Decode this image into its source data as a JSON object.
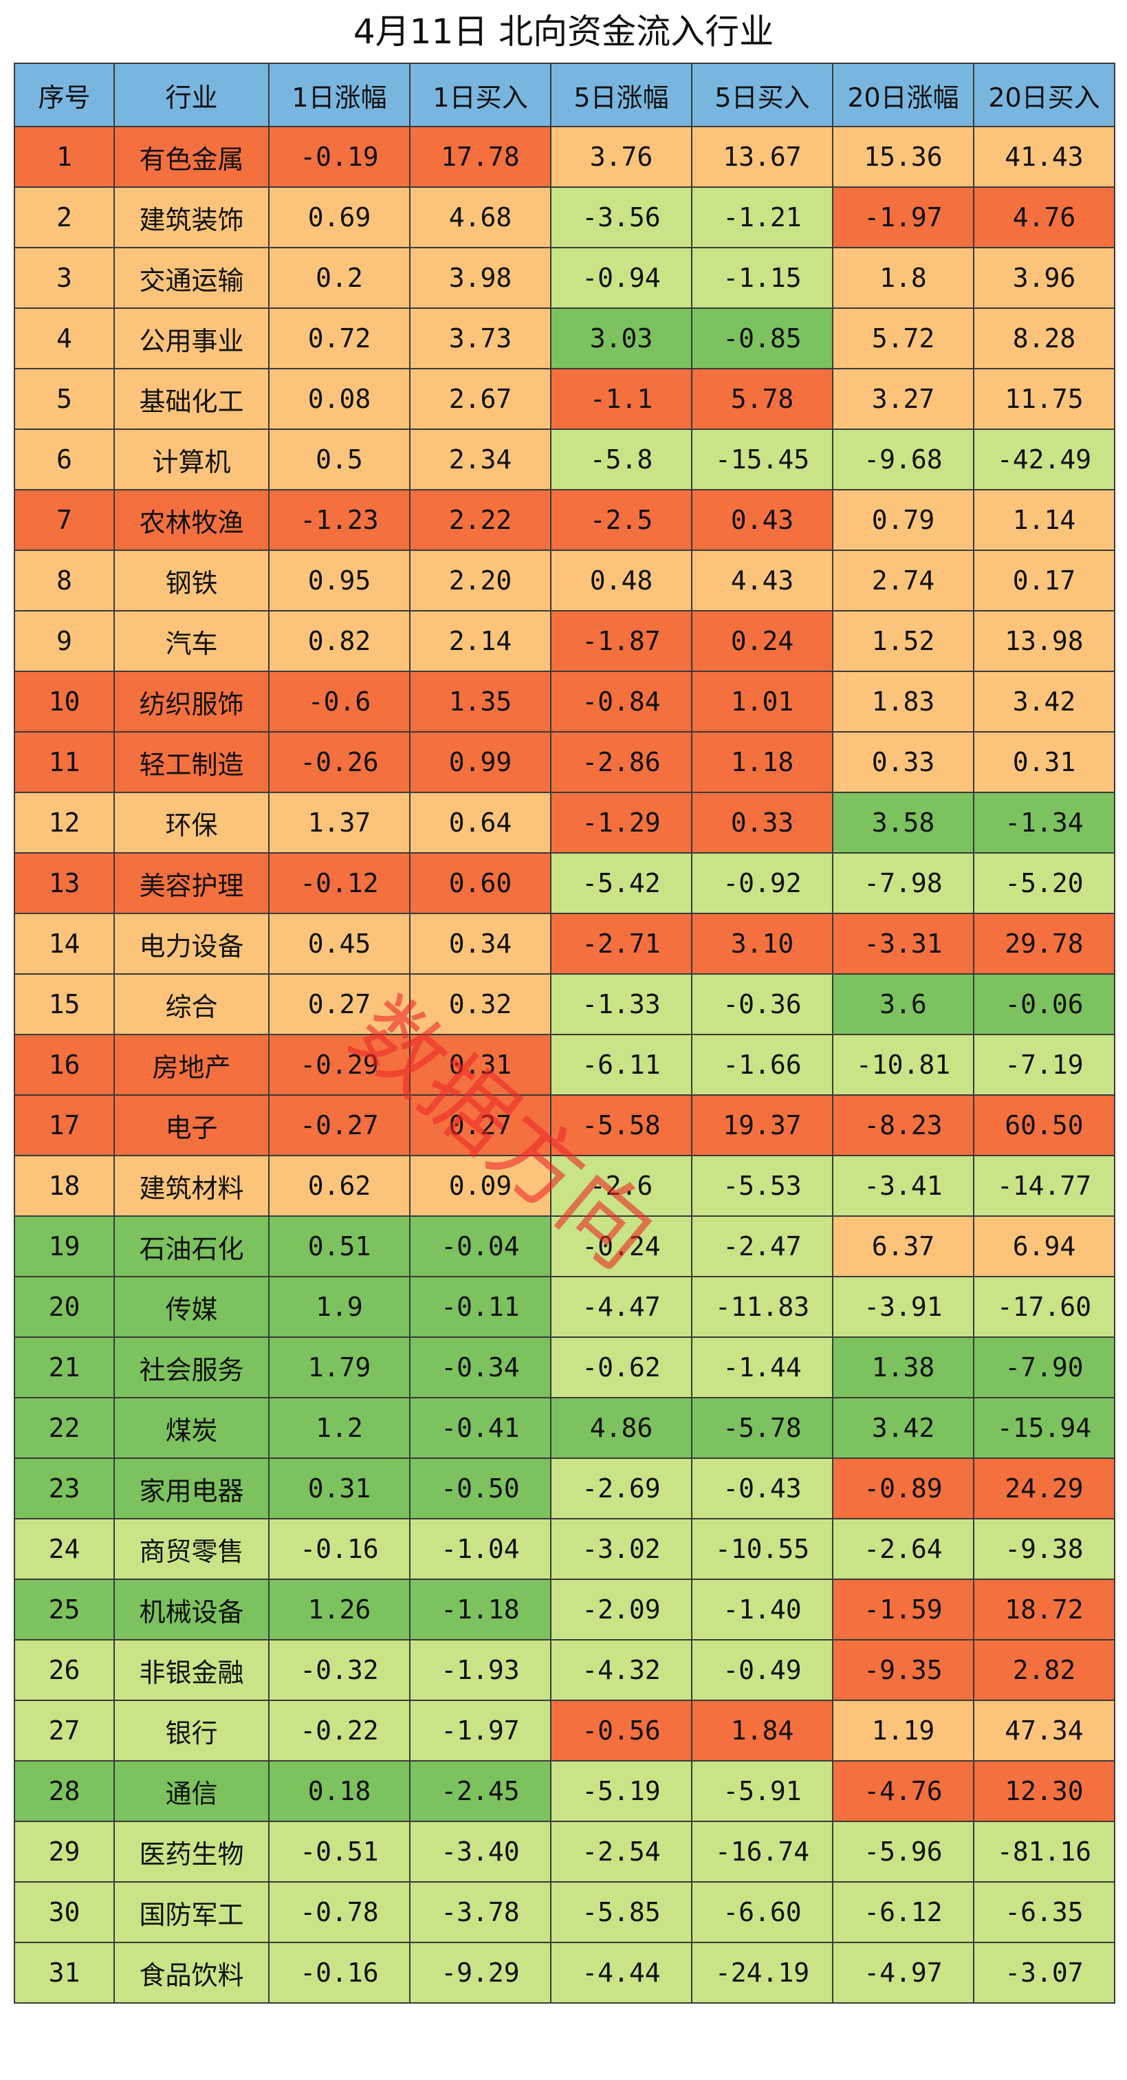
{
  "title": "4月11日  北向资金流入行业",
  "watermark": "数据方向",
  "colors": {
    "O": "#f4703f",
    "Y": "#fcc47a",
    "G": "#7cc25e",
    "L": "#c8e486",
    "header": "#79b6df"
  },
  "chart_data": {
    "type": "table",
    "title": "4月11日  北向资金流入行业",
    "columns": [
      "序号",
      "行业",
      "1日涨幅",
      "1日买入",
      "5日涨幅",
      "5日买入",
      "20日涨幅",
      "20日买入"
    ],
    "rows": [
      {
        "cells": [
          "1",
          "有色金属",
          "-0.19",
          "17.78",
          "3.76",
          "13.67",
          "15.36",
          "41.43"
        ],
        "colors": [
          "O",
          "O",
          "O",
          "O",
          "Y",
          "Y",
          "Y",
          "Y"
        ]
      },
      {
        "cells": [
          "2",
          "建筑装饰",
          "0.69",
          "4.68",
          "-3.56",
          "-1.21",
          "-1.97",
          "4.76"
        ],
        "colors": [
          "Y",
          "Y",
          "Y",
          "Y",
          "L",
          "L",
          "O",
          "O"
        ]
      },
      {
        "cells": [
          "3",
          "交通运输",
          "0.2",
          "3.98",
          "-0.94",
          "-1.15",
          "1.8",
          "3.96"
        ],
        "colors": [
          "Y",
          "Y",
          "Y",
          "Y",
          "L",
          "L",
          "Y",
          "Y"
        ]
      },
      {
        "cells": [
          "4",
          "公用事业",
          "0.72",
          "3.73",
          "3.03",
          "-0.85",
          "5.72",
          "8.28"
        ],
        "colors": [
          "Y",
          "Y",
          "Y",
          "Y",
          "G",
          "G",
          "Y",
          "Y"
        ]
      },
      {
        "cells": [
          "5",
          "基础化工",
          "0.08",
          "2.67",
          "-1.1",
          "5.78",
          "3.27",
          "11.75"
        ],
        "colors": [
          "Y",
          "Y",
          "Y",
          "Y",
          "O",
          "O",
          "Y",
          "Y"
        ]
      },
      {
        "cells": [
          "6",
          "计算机",
          "0.5",
          "2.34",
          "-5.8",
          "-15.45",
          "-9.68",
          "-42.49"
        ],
        "colors": [
          "Y",
          "Y",
          "Y",
          "Y",
          "L",
          "L",
          "L",
          "L"
        ]
      },
      {
        "cells": [
          "7",
          "农林牧渔",
          "-1.23",
          "2.22",
          "-2.5",
          "0.43",
          "0.79",
          "1.14"
        ],
        "colors": [
          "O",
          "O",
          "O",
          "O",
          "O",
          "O",
          "Y",
          "Y"
        ]
      },
      {
        "cells": [
          "8",
          "钢铁",
          "0.95",
          "2.20",
          "0.48",
          "4.43",
          "2.74",
          "0.17"
        ],
        "colors": [
          "Y",
          "Y",
          "Y",
          "Y",
          "Y",
          "Y",
          "Y",
          "Y"
        ]
      },
      {
        "cells": [
          "9",
          "汽车",
          "0.82",
          "2.14",
          "-1.87",
          "0.24",
          "1.52",
          "13.98"
        ],
        "colors": [
          "Y",
          "Y",
          "Y",
          "Y",
          "O",
          "O",
          "Y",
          "Y"
        ]
      },
      {
        "cells": [
          "10",
          "纺织服饰",
          "-0.6",
          "1.35",
          "-0.84",
          "1.01",
          "1.83",
          "3.42"
        ],
        "colors": [
          "O",
          "O",
          "O",
          "O",
          "O",
          "O",
          "Y",
          "Y"
        ]
      },
      {
        "cells": [
          "11",
          "轻工制造",
          "-0.26",
          "0.99",
          "-2.86",
          "1.18",
          "0.33",
          "0.31"
        ],
        "colors": [
          "O",
          "O",
          "O",
          "O",
          "O",
          "O",
          "Y",
          "Y"
        ]
      },
      {
        "cells": [
          "12",
          "环保",
          "1.37",
          "0.64",
          "-1.29",
          "0.33",
          "3.58",
          "-1.34"
        ],
        "colors": [
          "Y",
          "Y",
          "Y",
          "Y",
          "O",
          "O",
          "G",
          "G"
        ]
      },
      {
        "cells": [
          "13",
          "美容护理",
          "-0.12",
          "0.60",
          "-5.42",
          "-0.92",
          "-7.98",
          "-5.20"
        ],
        "colors": [
          "O",
          "O",
          "O",
          "O",
          "L",
          "L",
          "L",
          "L"
        ]
      },
      {
        "cells": [
          "14",
          "电力设备",
          "0.45",
          "0.34",
          "-2.71",
          "3.10",
          "-3.31",
          "29.78"
        ],
        "colors": [
          "Y",
          "Y",
          "Y",
          "Y",
          "O",
          "O",
          "O",
          "O"
        ]
      },
      {
        "cells": [
          "15",
          "综合",
          "0.27",
          "0.32",
          "-1.33",
          "-0.36",
          "3.6",
          "-0.06"
        ],
        "colors": [
          "Y",
          "Y",
          "Y",
          "Y",
          "L",
          "L",
          "G",
          "G"
        ]
      },
      {
        "cells": [
          "16",
          "房地产",
          "-0.29",
          "0.31",
          "-6.11",
          "-1.66",
          "-10.81",
          "-7.19"
        ],
        "colors": [
          "O",
          "O",
          "O",
          "O",
          "L",
          "L",
          "L",
          "L"
        ]
      },
      {
        "cells": [
          "17",
          "电子",
          "-0.27",
          "0.27",
          "-5.58",
          "19.37",
          "-8.23",
          "60.50"
        ],
        "colors": [
          "O",
          "O",
          "O",
          "O",
          "O",
          "O",
          "O",
          "O"
        ]
      },
      {
        "cells": [
          "18",
          "建筑材料",
          "0.62",
          "0.09",
          "-2.6",
          "-5.53",
          "-3.41",
          "-14.77"
        ],
        "colors": [
          "Y",
          "Y",
          "Y",
          "Y",
          "L",
          "L",
          "L",
          "L"
        ]
      },
      {
        "cells": [
          "19",
          "石油石化",
          "0.51",
          "-0.04",
          "-0.24",
          "-2.47",
          "6.37",
          "6.94"
        ],
        "colors": [
          "G",
          "G",
          "G",
          "G",
          "L",
          "L",
          "Y",
          "Y"
        ]
      },
      {
        "cells": [
          "20",
          "传媒",
          "1.9",
          "-0.11",
          "-4.47",
          "-11.83",
          "-3.91",
          "-17.60"
        ],
        "colors": [
          "G",
          "G",
          "G",
          "G",
          "L",
          "L",
          "L",
          "L"
        ]
      },
      {
        "cells": [
          "21",
          "社会服务",
          "1.79",
          "-0.34",
          "-0.62",
          "-1.44",
          "1.38",
          "-7.90"
        ],
        "colors": [
          "G",
          "G",
          "G",
          "G",
          "L",
          "L",
          "G",
          "G"
        ]
      },
      {
        "cells": [
          "22",
          "煤炭",
          "1.2",
          "-0.41",
          "4.86",
          "-5.78",
          "3.42",
          "-15.94"
        ],
        "colors": [
          "G",
          "G",
          "G",
          "G",
          "G",
          "G",
          "G",
          "G"
        ]
      },
      {
        "cells": [
          "23",
          "家用电器",
          "0.31",
          "-0.50",
          "-2.69",
          "-0.43",
          "-0.89",
          "24.29"
        ],
        "colors": [
          "G",
          "G",
          "G",
          "G",
          "L",
          "L",
          "O",
          "O"
        ]
      },
      {
        "cells": [
          "24",
          "商贸零售",
          "-0.16",
          "-1.04",
          "-3.02",
          "-10.55",
          "-2.64",
          "-9.38"
        ],
        "colors": [
          "L",
          "L",
          "L",
          "L",
          "L",
          "L",
          "L",
          "L"
        ]
      },
      {
        "cells": [
          "25",
          "机械设备",
          "1.26",
          "-1.18",
          "-2.09",
          "-1.40",
          "-1.59",
          "18.72"
        ],
        "colors": [
          "G",
          "G",
          "G",
          "G",
          "L",
          "L",
          "O",
          "O"
        ]
      },
      {
        "cells": [
          "26",
          "非银金融",
          "-0.32",
          "-1.93",
          "-4.32",
          "-0.49",
          "-9.35",
          "2.82"
        ],
        "colors": [
          "L",
          "L",
          "L",
          "L",
          "L",
          "L",
          "O",
          "O"
        ]
      },
      {
        "cells": [
          "27",
          "银行",
          "-0.22",
          "-1.97",
          "-0.56",
          "1.84",
          "1.19",
          "47.34"
        ],
        "colors": [
          "L",
          "L",
          "L",
          "L",
          "O",
          "O",
          "Y",
          "Y"
        ]
      },
      {
        "cells": [
          "28",
          "通信",
          "0.18",
          "-2.45",
          "-5.19",
          "-5.91",
          "-4.76",
          "12.30"
        ],
        "colors": [
          "G",
          "G",
          "G",
          "G",
          "L",
          "L",
          "O",
          "O"
        ]
      },
      {
        "cells": [
          "29",
          "医药生物",
          "-0.51",
          "-3.40",
          "-2.54",
          "-16.74",
          "-5.96",
          "-81.16"
        ],
        "colors": [
          "L",
          "L",
          "L",
          "L",
          "L",
          "L",
          "L",
          "L"
        ]
      },
      {
        "cells": [
          "30",
          "国防军工",
          "-0.78",
          "-3.78",
          "-5.85",
          "-6.60",
          "-6.12",
          "-6.35"
        ],
        "colors": [
          "L",
          "L",
          "L",
          "L",
          "L",
          "L",
          "L",
          "L"
        ]
      },
      {
        "cells": [
          "31",
          "食品饮料",
          "-0.16",
          "-9.29",
          "-4.44",
          "-24.19",
          "-4.97",
          "-3.07"
        ],
        "colors": [
          "L",
          "L",
          "L",
          "L",
          "L",
          "L",
          "L",
          "L"
        ]
      }
    ]
  }
}
